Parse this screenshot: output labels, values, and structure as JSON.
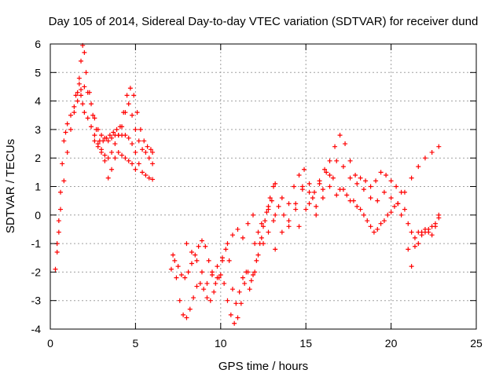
{
  "colors": {
    "series": "#ff0000",
    "grid": "#a0a0a0",
    "axis": "#000000",
    "background": "#ffffff"
  },
  "chart_data": {
    "type": "scatter",
    "title": "Day 105 of 2014, Sidereal Day-to-day VTEC variation (SDTVAR) for receiver dund",
    "xlabel": "GPS time / hours",
    "ylabel": "SDTVAR / TECUs",
    "xlim": [
      0,
      25
    ],
    "ylim": [
      -4,
      6
    ],
    "xticks": [
      0,
      5,
      10,
      15,
      20,
      25
    ],
    "yticks": [
      -4,
      -3,
      -2,
      -1,
      0,
      1,
      2,
      3,
      4,
      5,
      6
    ],
    "grid": true,
    "marker": "+",
    "legend": "none",
    "series": [
      {
        "name": "SDTVAR",
        "color": "#ff0000",
        "segments": [
          {
            "x": [
              0.3,
              0.4,
              0.5,
              0.6,
              0.7,
              0.8,
              0.9,
              1.0,
              1.2,
              1.4,
              1.5,
              1.7,
              1.8,
              1.9,
              2.0,
              2.2,
              2.4,
              2.6,
              2.8,
              3.0,
              3.2,
              3.4,
              3.6,
              3.8,
              4.0,
              4.2,
              4.4,
              4.6,
              4.8,
              5.0,
              5.2,
              5.4,
              5.6,
              5.8,
              6.0
            ],
            "y": [
              -1.9,
              -1.0,
              -0.2,
              0.8,
              1.8,
              2.6,
              2.9,
              3.2,
              3.5,
              3.8,
              4.2,
              4.6,
              4.2,
              3.9,
              3.6,
              3.4,
              3.1,
              2.8,
              2.5,
              2.3,
              2.1,
              2.0,
              2.2,
              2.5,
              2.8,
              3.1,
              3.6,
              3.9,
              3.5,
              3.0,
              2.6,
              2.3,
              2.2,
              2.0,
              1.8
            ]
          },
          {
            "x": [
              0.4,
              0.5,
              0.6,
              0.8,
              1.0,
              1.2,
              1.4,
              1.6,
              1.7,
              1.8,
              1.9,
              2.0,
              2.1,
              2.3,
              2.5,
              2.7,
              2.9,
              3.1,
              3.3,
              3.5,
              3.7,
              3.9,
              4.1,
              4.3,
              4.5,
              4.7,
              4.9,
              5.1,
              5.3,
              5.5,
              5.7,
              5.9,
              6.0
            ],
            "y": [
              -1.3,
              -0.6,
              0.2,
              1.2,
              2.2,
              3.0,
              3.6,
              4.3,
              4.8,
              5.4,
              5.95,
              5.7,
              5.0,
              4.3,
              3.5,
              3.0,
              2.6,
              2.6,
              2.7,
              2.8,
              2.9,
              3.0,
              3.1,
              3.6,
              4.2,
              4.45,
              4.2,
              3.6,
              3.0,
              2.6,
              2.4,
              2.3,
              2.2
            ]
          },
          {
            "x": [
              1.6,
              1.8,
              2.0,
              2.2,
              2.4,
              2.6,
              2.8,
              3.0,
              3.2,
              3.4,
              3.6,
              3.8,
              4.0,
              4.2,
              4.4,
              4.6,
              4.8,
              5.0,
              5.2,
              5.4,
              5.6,
              5.8,
              6.0
            ],
            "y": [
              4.0,
              4.4,
              4.5,
              4.3,
              3.9,
              3.4,
              3.0,
              2.8,
              2.7,
              2.6,
              2.7,
              2.8,
              2.8,
              2.8,
              2.8,
              2.7,
              2.5,
              2.2,
              1.8,
              1.5,
              1.4,
              1.3,
              1.25
            ]
          },
          {
            "x": [
              2.6,
              2.8,
              3.0,
              3.2,
              3.4,
              3.6,
              3.8,
              4.0,
              4.2,
              4.4,
              4.6,
              4.8,
              5.0
            ],
            "y": [
              2.6,
              2.4,
              2.2,
              1.9,
              1.3,
              1.6,
              2.0,
              2.2,
              2.1,
              2.0,
              1.9,
              1.8,
              1.6
            ]
          },
          {
            "x": [
              7.1,
              7.3,
              7.5,
              7.7,
              7.9,
              8.1,
              8.3,
              8.5,
              8.7,
              8.9,
              9.1,
              9.3,
              9.5,
              9.7,
              9.9,
              10.1,
              10.3,
              10.5,
              10.7,
              10.9,
              11.1,
              11.3,
              11.5,
              11.7,
              11.9,
              12.1,
              12.3,
              12.5,
              12.7,
              12.9,
              13.1
            ],
            "y": [
              -1.9,
              -1.6,
              -1.8,
              -2.1,
              -2.2,
              -2.0,
              -1.7,
              -1.4,
              -1.1,
              -0.9,
              -1.1,
              -1.6,
              -2.0,
              -2.4,
              -2.2,
              -1.6,
              -1.2,
              -1.6,
              -2.6,
              -3.1,
              -2.7,
              -2.2,
              -2.0,
              -2.6,
              -2.1,
              -1.6,
              -1.0,
              -0.4,
              0.1,
              0.6,
              1.0
            ]
          },
          {
            "x": [
              7.2,
              7.4,
              7.6,
              7.8,
              8.0,
              8.2,
              8.4,
              8.6,
              8.8,
              9.0,
              9.2,
              9.4,
              9.6,
              9.8,
              10.0,
              10.2,
              10.4,
              10.6,
              10.8,
              11.0,
              11.2,
              11.4,
              11.6,
              11.8,
              12.0,
              12.2,
              12.4,
              12.6,
              12.8,
              13.0,
              13.2
            ],
            "y": [
              -1.4,
              -2.2,
              -3.0,
              -3.5,
              -3.6,
              -3.3,
              -2.9,
              -2.5,
              -2.4,
              -2.6,
              -2.9,
              -3.0,
              -2.7,
              -2.2,
              -2.1,
              -2.4,
              -3.0,
              -3.5,
              -3.8,
              -3.6,
              -3.1,
              -2.4,
              -2.0,
              -2.3,
              -2.0,
              -1.4,
              -0.8,
              -0.2,
              0.2,
              0.5,
              1.1
            ]
          },
          {
            "x": [
              8.0,
              8.3,
              8.6,
              8.9,
              9.2,
              9.5,
              9.8,
              10.1,
              10.4,
              10.7,
              11.0,
              11.3,
              11.6,
              11.9,
              12.2,
              12.5,
              12.8,
              13.1,
              13.4,
              13.7,
              14.0,
              14.3,
              14.6,
              14.9,
              15.2,
              15.5,
              15.8,
              16.1,
              16.4,
              16.7,
              17.0,
              17.3,
              17.6,
              17.9,
              18.2,
              18.5,
              18.8,
              19.1,
              19.4,
              19.7,
              20.0,
              20.3,
              20.6
            ],
            "y": [
              -1.0,
              -1.3,
              -1.6,
              -2.0,
              -2.4,
              -2.1,
              -1.8,
              -1.5,
              -1.0,
              -0.7,
              -0.5,
              -0.8,
              -0.3,
              0.0,
              -0.6,
              -1.0,
              -0.6,
              -0.2,
              0.3,
              0.0,
              0.4,
              1.0,
              1.4,
              1.6,
              1.1,
              0.8,
              1.2,
              1.6,
              1.9,
              2.4,
              2.8,
              2.5,
              1.9,
              1.4,
              1.3,
              1.2,
              1.0,
              1.2,
              1.5,
              1.4,
              1.2,
              1.0,
              0.8
            ]
          },
          {
            "x": [
              12.0,
              12.4,
              12.8,
              13.2,
              13.6,
              14.0,
              14.4,
              14.8,
              15.2,
              15.6,
              16.0,
              16.4,
              16.8,
              17.2,
              17.6,
              18.0,
              18.4,
              18.8,
              19.2,
              19.6,
              20.0,
              20.4,
              20.8,
              21.2,
              21.6,
              22.0,
              22.4,
              22.8
            ],
            "y": [
              -1.0,
              -0.3,
              0.3,
              0.0,
              0.6,
              -0.4,
              0.2,
              1.0,
              0.8,
              0.3,
              0.9,
              1.4,
              1.9,
              1.7,
              1.3,
              1.1,
              0.9,
              0.6,
              0.5,
              0.8,
              0.6,
              0.4,
              0.8,
              1.3,
              1.7,
              2.0,
              2.2,
              2.4
            ]
          },
          {
            "x": [
              13.2,
              13.6,
              14.0,
              14.4,
              14.8,
              15.2,
              15.6,
              16.0,
              16.4,
              16.8,
              17.2,
              17.6,
              18.0,
              18.4,
              18.8,
              19.2,
              19.6,
              20.0,
              20.4,
              20.8,
              21.2,
              21.6,
              22.0,
              22.4,
              22.8
            ],
            "y": [
              -1.2,
              -0.6,
              -0.2,
              0.4,
              0.9,
              0.4,
              0.0,
              0.6,
              1.0,
              0.7,
              0.9,
              0.5,
              0.3,
              0.0,
              -0.4,
              -0.5,
              -0.2,
              0.1,
              0.4,
              0.2,
              -0.6,
              -1.0,
              -0.6,
              -0.4,
              -0.1
            ]
          },
          {
            "x": [
              14.6,
              15.0,
              15.4,
              15.8,
              16.2,
              16.6,
              17.0,
              17.4,
              17.8,
              18.2,
              18.6,
              19.0,
              19.4,
              19.8,
              20.2,
              20.6,
              21.0,
              21.4,
              21.8,
              22.2,
              22.6
            ],
            "y": [
              -0.4,
              0.2,
              0.6,
              1.1,
              1.5,
              1.3,
              0.9,
              0.7,
              0.5,
              0.2,
              -0.2,
              -0.6,
              -0.3,
              0.0,
              0.3,
              0.0,
              -0.3,
              -0.8,
              -0.6,
              -0.5,
              -0.3
            ]
          },
          {
            "x": [
              21.0,
              21.2,
              21.4,
              21.6,
              21.8,
              22.0,
              22.2,
              22.4,
              22.6,
              22.8
            ],
            "y": [
              -1.2,
              -1.8,
              -1.1,
              -0.6,
              -0.7,
              -0.5,
              -0.6,
              -0.7,
              -0.4,
              0.0
            ]
          }
        ]
      }
    ]
  }
}
